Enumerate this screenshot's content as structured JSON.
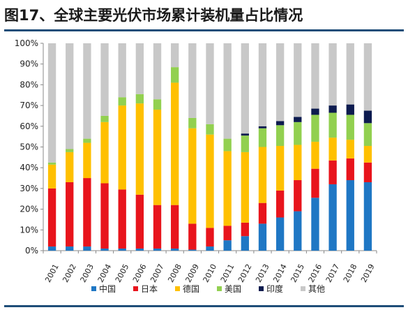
{
  "header": {
    "title": "图17、全球主要光伏市场累计装机量占比情况"
  },
  "chart_data": {
    "type": "bar",
    "stacked": true,
    "percent": true,
    "title": "图17、全球主要光伏市场累计装机量占比情况",
    "xlabel": "",
    "ylabel": "",
    "ylim": [
      0,
      100
    ],
    "yticks": [
      "0%",
      "10%",
      "20%",
      "30%",
      "40%",
      "50%",
      "60%",
      "70%",
      "80%",
      "90%",
      "100%"
    ],
    "categories": [
      "2001",
      "2002",
      "2003",
      "2004",
      "2005",
      "2006",
      "2007",
      "2008",
      "2009",
      "2010",
      "2011",
      "2012",
      "2013",
      "2014",
      "2015",
      "2016",
      "2017",
      "2018",
      "2019"
    ],
    "grid": false,
    "legend_position": "bottom",
    "series": [
      {
        "name": "中国",
        "color": "#1f77c4",
        "values": [
          2,
          2,
          2,
          1,
          1,
          1,
          1,
          1,
          0.5,
          2,
          5,
          7,
          13,
          16,
          19,
          25.5,
          32,
          34,
          33
        ]
      },
      {
        "name": "日本",
        "color": "#e8141c",
        "values": [
          28,
          31,
          33,
          31.5,
          28.5,
          26,
          21,
          21,
          12.5,
          9,
          7,
          6.5,
          10,
          13,
          15,
          14,
          11.5,
          10.5,
          9.5
        ]
      },
      {
        "name": "德国",
        "color": "#ffc000",
        "values": [
          11.5,
          14.5,
          17,
          29.5,
          40.5,
          44,
          46,
          59,
          46,
          45,
          36,
          34,
          27,
          21.5,
          17,
          13,
          11,
          9,
          8
        ]
      },
      {
        "name": "美国",
        "color": "#92d050",
        "values": [
          1,
          1.5,
          2,
          3,
          4,
          4.5,
          5,
          7.5,
          5,
          5,
          6,
          8,
          9,
          10,
          11,
          13,
          12,
          12,
          11
        ]
      },
      {
        "name": "印度",
        "color": "#0d1b4f",
        "values": [
          0,
          0,
          0,
          0,
          0,
          0,
          0,
          0,
          0,
          0,
          0,
          1,
          1,
          2,
          2.5,
          3,
          3.5,
          5,
          6
        ]
      },
      {
        "name": "其他",
        "color": "#c8c8c8",
        "values": [
          57.5,
          51,
          46,
          35,
          26,
          24.5,
          27,
          11.5,
          36,
          39,
          46,
          43.5,
          40,
          37.5,
          35.5,
          31.5,
          30,
          29.5,
          32.5
        ]
      }
    ]
  }
}
